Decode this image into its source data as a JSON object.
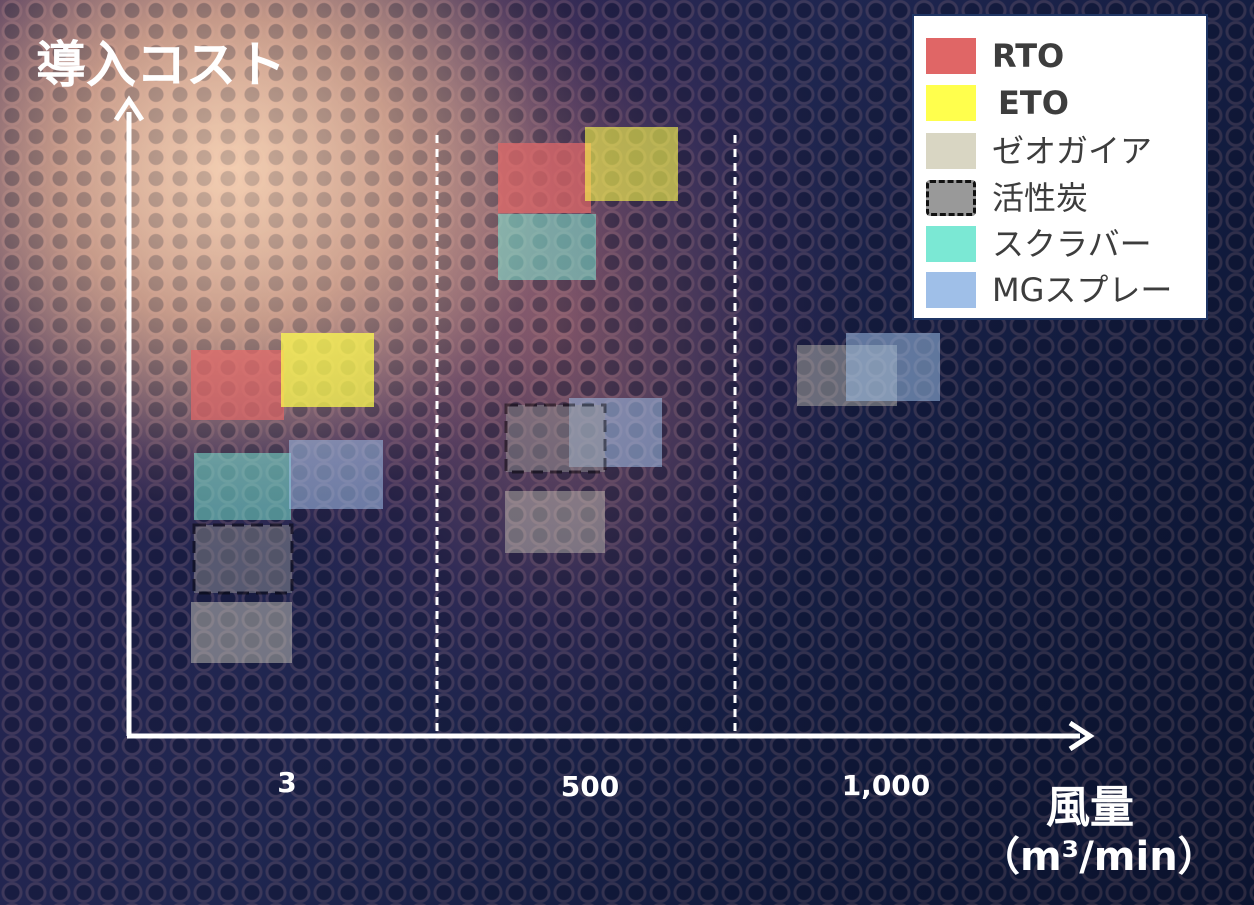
{
  "chart_data": {
    "type": "range-box",
    "ylabel": "導入コスト",
    "xlabel": "風量",
    "xunit": "（m³/min）",
    "categories": [
      "3",
      "500",
      "1,000"
    ],
    "legend_position": "top-right",
    "series": [
      {
        "name": "RTO",
        "color": "#e06666",
        "points": [
          {
            "x": "3",
            "cost": "high"
          },
          {
            "x": "500",
            "cost": "highest"
          }
        ]
      },
      {
        "name": "ETO",
        "color": "#ffff4d",
        "points": [
          {
            "x": "3",
            "cost": "high"
          },
          {
            "x": "500",
            "cost": "highest"
          }
        ]
      },
      {
        "name": "ゼオガイア",
        "color": "#d9d6c3",
        "points": [
          {
            "x": "3",
            "cost": "lowest"
          },
          {
            "x": "500",
            "cost": "low"
          },
          {
            "x": "1,000",
            "cost": "medium"
          }
        ]
      },
      {
        "name": "活性炭",
        "color": "#999999",
        "dashed": true,
        "points": [
          {
            "x": "3",
            "cost": "low"
          },
          {
            "x": "500",
            "cost": "medium-low"
          }
        ]
      },
      {
        "name": "スクラバー",
        "color": "#7be8d4",
        "points": [
          {
            "x": "3",
            "cost": "medium"
          },
          {
            "x": "500",
            "cost": "very high"
          }
        ]
      },
      {
        "name": "MGスプレー",
        "color": "#9fbfe8",
        "points": [
          {
            "x": "3",
            "cost": "medium"
          },
          {
            "x": "500",
            "cost": "medium-low"
          },
          {
            "x": "1,000",
            "cost": "medium"
          }
        ]
      }
    ]
  },
  "legend": {
    "items": [
      {
        "label": "RTO",
        "color": "#e06666",
        "dashed": false
      },
      {
        "label": "ETO",
        "color": "#ffff4d",
        "dashed": false
      },
      {
        "label": "ゼオガイア",
        "color": "#d9d6c3",
        "dashed": false
      },
      {
        "label": "活性炭",
        "color": "#999999",
        "dashed": true
      },
      {
        "label": "スクラバー",
        "color": "#7be8d4",
        "dashed": false
      },
      {
        "label": "MGスプレー",
        "color": "#9fbfe8",
        "dashed": false
      }
    ]
  }
}
